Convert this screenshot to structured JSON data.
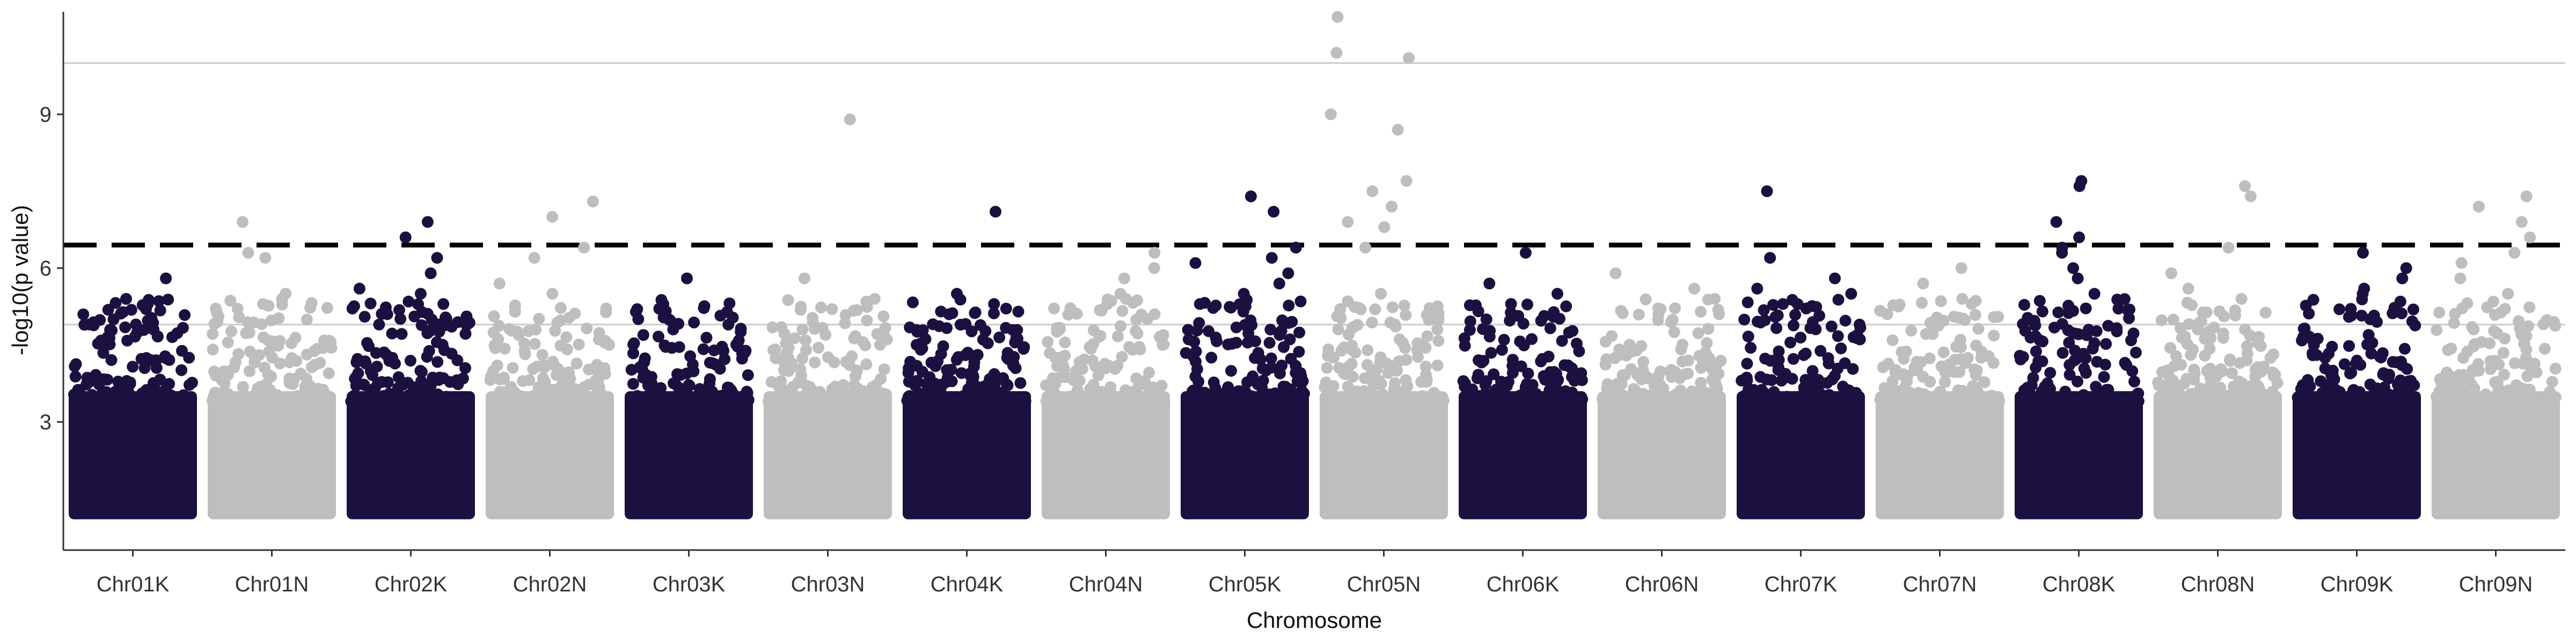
{
  "chart_data": {
    "type": "scatter",
    "subtype": "manhattan",
    "title": "",
    "xlabel": "Chromosome",
    "ylabel": "-log10(p value)",
    "ylim": [
      0.5,
      11.0
    ],
    "yticks": [
      3,
      6,
      9
    ],
    "grid": false,
    "reference_lines": [
      {
        "y": 4.9,
        "style": "solid",
        "color": "#cccccc"
      },
      {
        "y": 10.0,
        "style": "solid",
        "color": "#cccccc"
      },
      {
        "y": 6.45,
        "style": "dashed",
        "color": "#000000"
      }
    ],
    "colors": {
      "odd": "#1c1040",
      "even": "#bebebe"
    },
    "floor": 1.1,
    "chromosomes": [
      {
        "name": "Chr01K",
        "max": 5.8,
        "peaks": [
          5.8,
          5.4,
          5.3,
          5.2,
          5.0
        ]
      },
      {
        "name": "Chr01N",
        "max": 6.9,
        "peaks": [
          6.9,
          6.3,
          5.5,
          5.4,
          5.3,
          6.2
        ]
      },
      {
        "name": "Chr02K",
        "max": 6.9,
        "peaks": [
          6.9,
          6.6,
          6.2,
          5.9,
          5.6,
          5.5,
          5.3
        ]
      },
      {
        "name": "Chr02N",
        "max": 7.3,
        "peaks": [
          7.3,
          7.0,
          6.4,
          6.2,
          5.7,
          5.5
        ]
      },
      {
        "name": "Chr03K",
        "max": 5.8,
        "peaks": [
          5.8,
          5.3,
          5.2,
          5.0
        ]
      },
      {
        "name": "Chr03N",
        "max": 8.9,
        "peaks": [
          8.9,
          5.8,
          5.4,
          5.2
        ]
      },
      {
        "name": "Chr04K",
        "max": 7.1,
        "peaks": [
          7.1,
          5.5,
          5.3,
          5.1
        ]
      },
      {
        "name": "Chr04N",
        "max": 6.3,
        "peaks": [
          6.3,
          6.0,
          5.8,
          5.5
        ]
      },
      {
        "name": "Chr05K",
        "max": 7.4,
        "peaks": [
          7.4,
          7.1,
          6.4,
          6.2,
          6.1,
          5.9,
          5.7,
          5.5
        ]
      },
      {
        "name": "Chr05N",
        "max": 10.9,
        "peaks": [
          10.9,
          10.2,
          10.1,
          9.0,
          8.7,
          7.7,
          7.5,
          7.2,
          6.9,
          6.8,
          6.4,
          5.5,
          5.2
        ]
      },
      {
        "name": "Chr06K",
        "max": 6.3,
        "peaks": [
          6.3,
          5.7,
          5.5,
          5.0
        ]
      },
      {
        "name": "Chr06N",
        "max": 5.9,
        "peaks": [
          5.9,
          5.6,
          5.4,
          5.2
        ]
      },
      {
        "name": "Chr07K",
        "max": 7.5,
        "peaks": [
          7.5,
          6.2,
          5.8,
          5.6,
          5.5,
          5.3
        ]
      },
      {
        "name": "Chr07N",
        "max": 6.0,
        "peaks": [
          6.0,
          5.7,
          5.4,
          5.3
        ]
      },
      {
        "name": "Chr08K",
        "max": 7.7,
        "peaks": [
          7.7,
          7.6,
          6.9,
          6.6,
          6.4,
          6.3,
          6.0,
          5.8,
          5.5
        ]
      },
      {
        "name": "Chr08N",
        "max": 7.6,
        "peaks": [
          7.6,
          7.4,
          6.4,
          5.9,
          5.6,
          5.4
        ]
      },
      {
        "name": "Chr09K",
        "max": 6.3,
        "peaks": [
          6.3,
          6.0,
          5.8,
          5.6,
          5.5
        ]
      },
      {
        "name": "Chr09N",
        "max": 7.4,
        "peaks": [
          7.4,
          7.2,
          6.9,
          6.6,
          6.3,
          6.1,
          5.8,
          5.5
        ]
      }
    ]
  }
}
